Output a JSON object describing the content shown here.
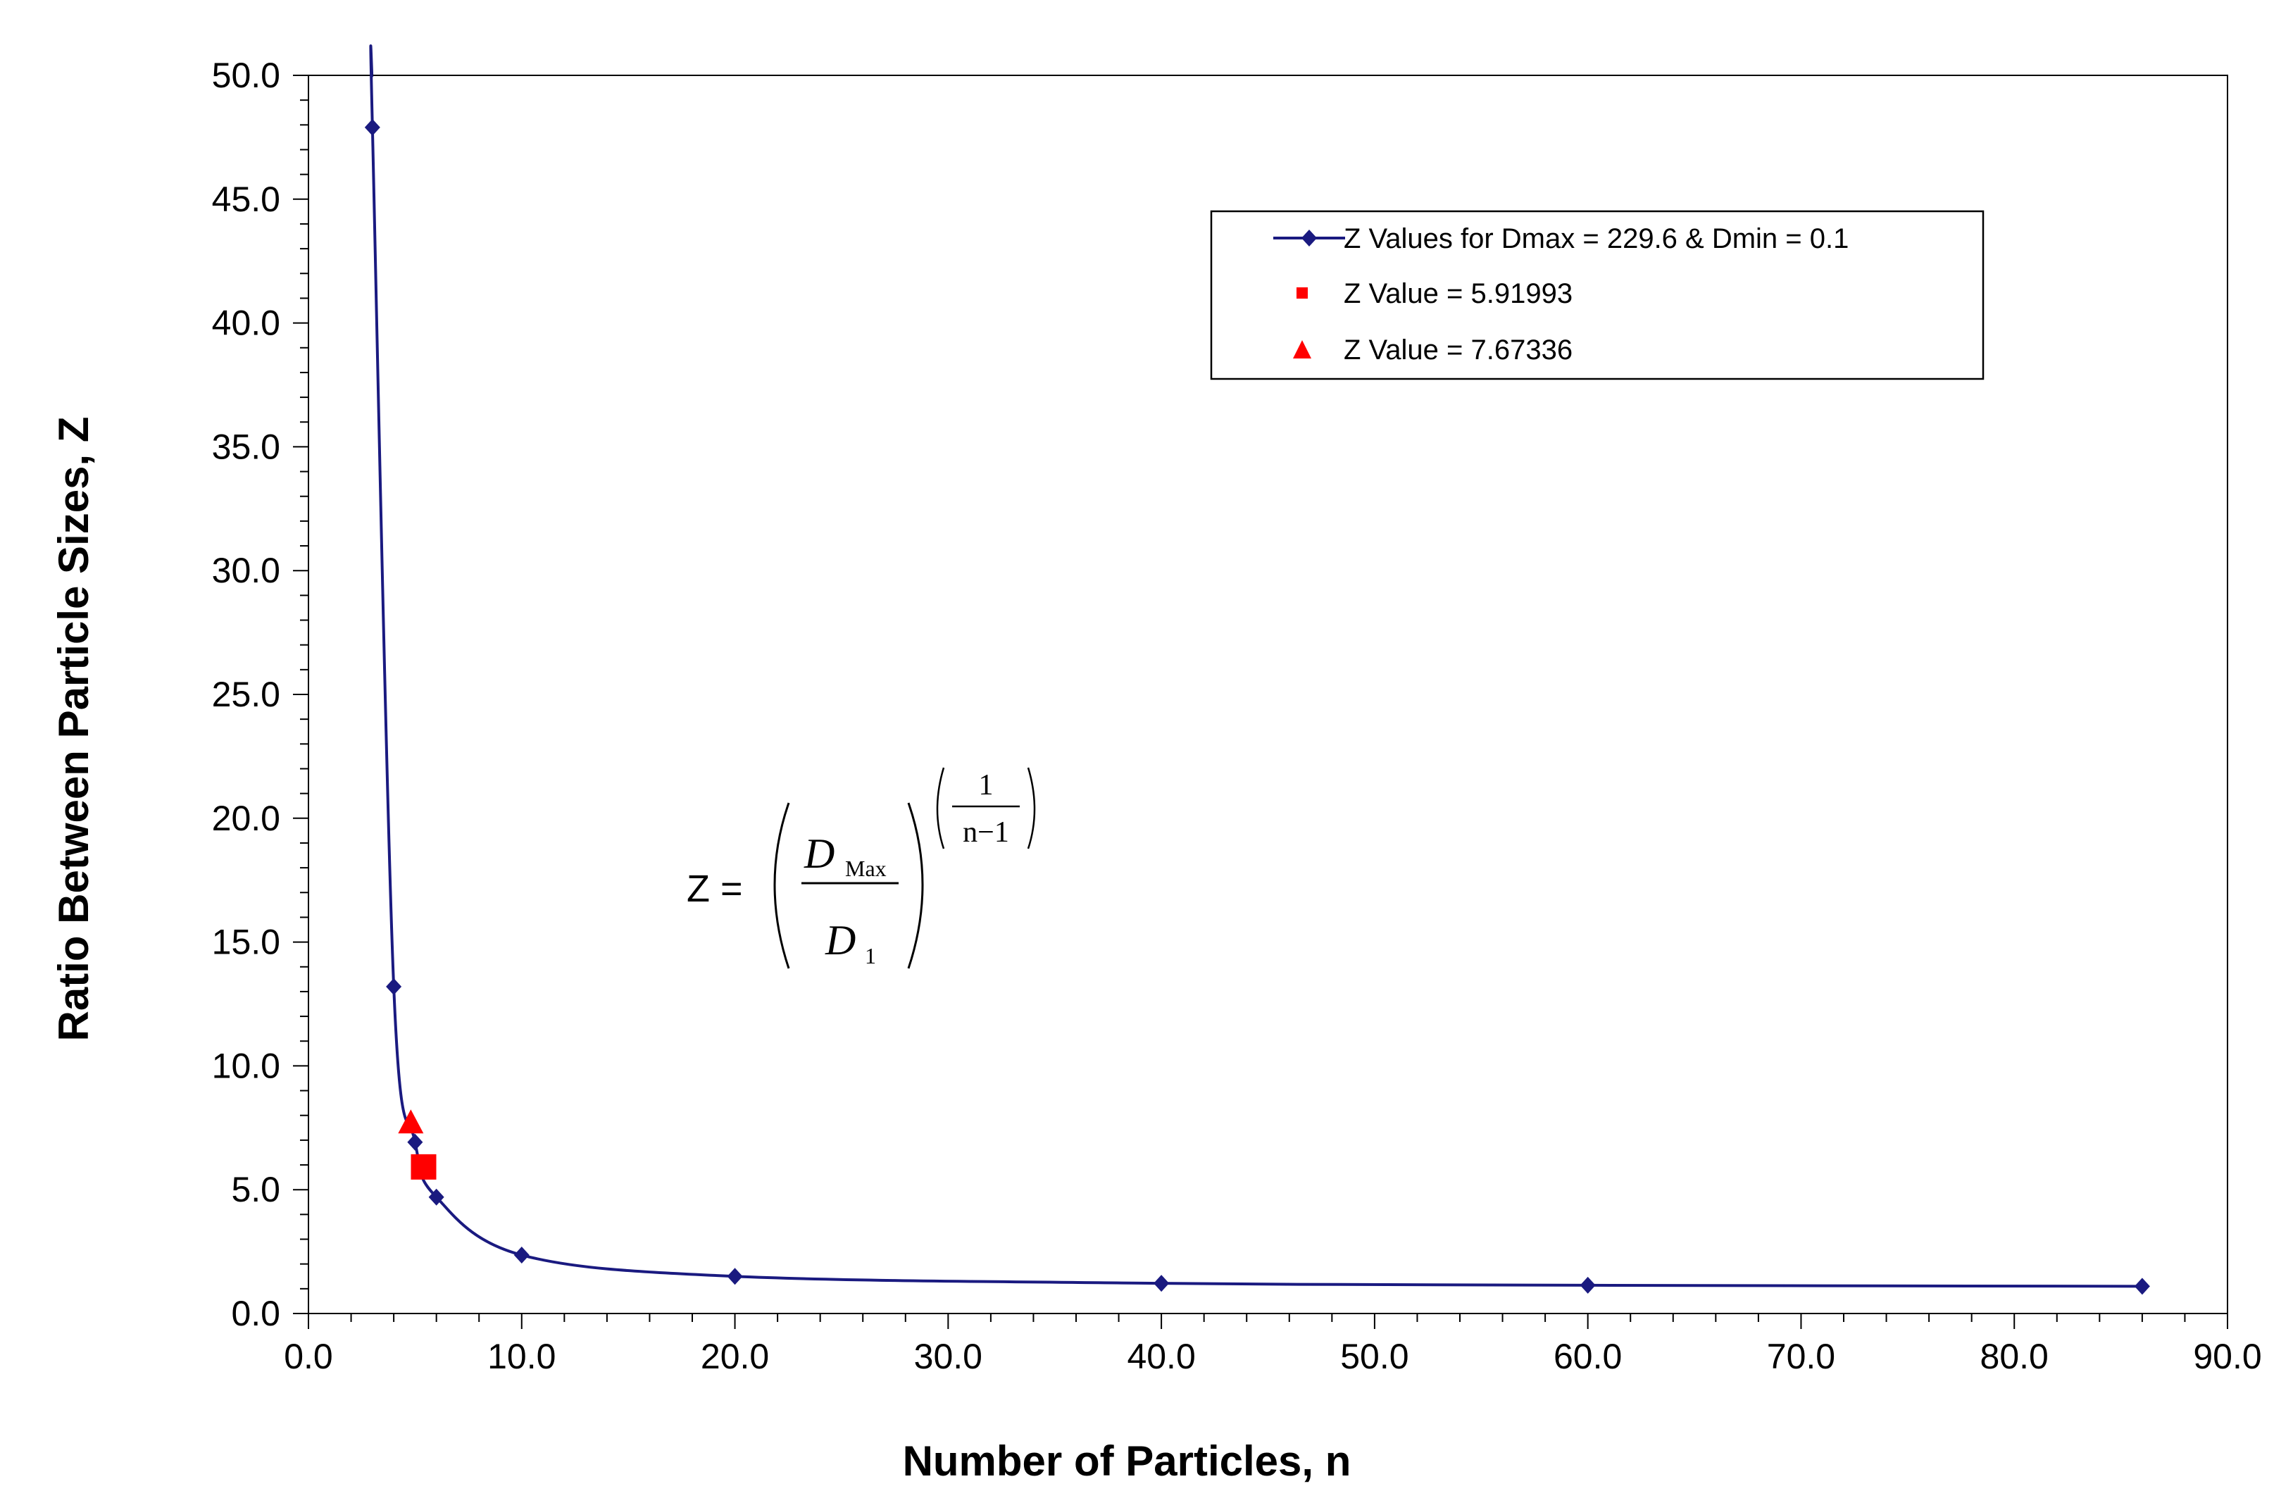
{
  "chart_data": {
    "type": "scatter",
    "xlabel": "Number of Particles,  n",
    "ylabel": "Ratio Between Particle Sizes,  Z",
    "xlim": [
      0,
      90
    ],
    "ylim": [
      0,
      50
    ],
    "x_ticks": [
      "0.0",
      "10.0",
      "20.0",
      "30.0",
      "40.0",
      "50.0",
      "60.0",
      "70.0",
      "80.0",
      "90.0"
    ],
    "y_ticks": [
      "0.0",
      "5.0",
      "10.0",
      "15.0",
      "20.0",
      "25.0",
      "30.0",
      "35.0",
      "40.0",
      "45.0",
      "50.0"
    ],
    "x_minor_step": 2,
    "y_minor_step": 1,
    "series": [
      {
        "name": "Z Values for Dmax = 229.6 & Dmin = 0.1",
        "color": "#1a1a80",
        "marker": "diamond",
        "smooth": true,
        "x": [
          3,
          4,
          5,
          6,
          10,
          20,
          40,
          60,
          86
        ],
        "y": [
          47.9,
          13.2,
          6.92,
          4.7,
          2.36,
          1.5,
          1.22,
          1.14,
          1.1
        ]
      },
      {
        "name": "Z Value = 5.91993",
        "color": "#ff0000",
        "marker": "square",
        "x": [
          5.4
        ],
        "y": [
          5.91993
        ]
      },
      {
        "name": "Z Value = 7.67336",
        "color": "#ff0000",
        "marker": "triangle",
        "x": [
          4.8
        ],
        "y": [
          7.67336
        ]
      }
    ],
    "legend": "top-right",
    "annotation": {
      "lhs": "Z =",
      "numerator": "D",
      "numerator_sub": "Max",
      "denominator": "D",
      "denominator_sub": "1",
      "exponent_num": "1",
      "exponent_den": "n−1"
    }
  }
}
